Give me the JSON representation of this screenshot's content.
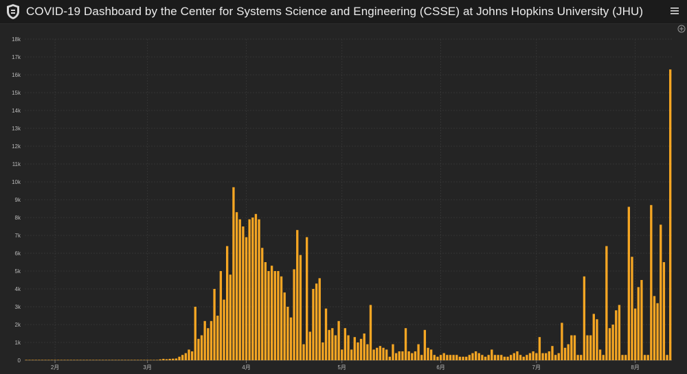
{
  "header": {
    "title": "COVID-19 Dashboard by the Center for Systems Science and Engineering (CSSE) at Johns Hopkins University (JHU)",
    "logo_icon": "jhu-shield-icon",
    "menu_icon": "hamburger-menu-icon",
    "expand_icon": "expand-icon"
  },
  "colors": {
    "bar": "#f5a623",
    "background": "#242424",
    "grid": "#383838"
  },
  "chart_data": {
    "type": "bar",
    "title": "",
    "xlabel": "",
    "ylabel": "",
    "ylim": [
      0,
      18000
    ],
    "grid": true,
    "yticks": [
      "0",
      "1k",
      "2k",
      "3k",
      "4k",
      "5k",
      "6k",
      "7k",
      "8k",
      "9k",
      "10k",
      "11k",
      "12k",
      "13k",
      "14k",
      "15k",
      "16k",
      "17k",
      "18k"
    ],
    "month_labels": [
      {
        "label": "2月",
        "day_index": 9
      },
      {
        "label": "3月",
        "day_index": 38
      },
      {
        "label": "4月",
        "day_index": 69
      },
      {
        "label": "5月",
        "day_index": 99
      },
      {
        "label": "6月",
        "day_index": 130
      },
      {
        "label": "7月",
        "day_index": 160
      },
      {
        "label": "8月",
        "day_index": 191
      }
    ],
    "x_start_date": "2020-01-22",
    "values": [
      0,
      0,
      0,
      0,
      0,
      0,
      0,
      0,
      0,
      0,
      0,
      0,
      0,
      0,
      0,
      0,
      0,
      0,
      0,
      0,
      0,
      0,
      0,
      0,
      0,
      0,
      0,
      0,
      0,
      0,
      0,
      0,
      0,
      0,
      0,
      0,
      0,
      0,
      0,
      0,
      0,
      0,
      50,
      80,
      60,
      80,
      90,
      100,
      200,
      300,
      400,
      600,
      500,
      3000,
      1200,
      1400,
      2200,
      1800,
      2200,
      4000,
      2500,
      5000,
      3400,
      6400,
      4800,
      9700,
      8300,
      7900,
      7500,
      6900,
      7900,
      8000,
      8200,
      7900,
      6300,
      5500,
      5000,
      5300,
      5000,
      5000,
      4700,
      3800,
      3000,
      2400,
      5100,
      7300,
      5900,
      900,
      6900,
      1600,
      4000,
      4300,
      4600,
      1000,
      2900,
      1700,
      1800,
      1400,
      2200,
      600,
      1800,
      1400,
      600,
      1300,
      1000,
      1200,
      1500,
      900,
      3100,
      600,
      700,
      800,
      700,
      600,
      200,
      900,
      400,
      500,
      500,
      1800,
      500,
      400,
      500,
      900,
      300,
      1700,
      700,
      600,
      300,
      200,
      300,
      400,
      300,
      300,
      300,
      300,
      200,
      200,
      200,
      300,
      400,
      500,
      400,
      300,
      200,
      300,
      600,
      300,
      300,
      300,
      200,
      200,
      300,
      400,
      500,
      300,
      200,
      300,
      400,
      500,
      400,
      1300,
      400,
      400,
      500,
      800,
      300,
      400,
      2100,
      700,
      900,
      1400,
      1400,
      300,
      300,
      4700,
      1400,
      1400,
      2600,
      2300,
      600,
      300,
      6400,
      1800,
      2000,
      2800,
      3100,
      300,
      300,
      8600,
      5800,
      2900,
      4100,
      4500,
      300,
      300,
      8700,
      3600,
      3200,
      7600,
      5500,
      300,
      16300
    ]
  }
}
